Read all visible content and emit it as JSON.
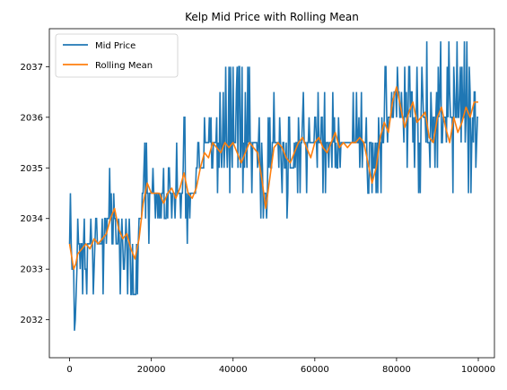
{
  "chart_data": {
    "type": "line",
    "title": "Kelp Mid Price with Rolling Mean",
    "xlabel": "",
    "ylabel": "",
    "xlim": [
      -4950,
      103950
    ],
    "ylim": [
      2031.25,
      2037.75
    ],
    "x_ticks": [
      0,
      20000,
      40000,
      60000,
      80000,
      100000
    ],
    "y_ticks": [
      2032,
      2033,
      2034,
      2035,
      2036,
      2037
    ],
    "legend_position": "top-left",
    "grid": false,
    "colors": {
      "mid": "#1f77b4",
      "mean": "#ff7f0e"
    },
    "series": [
      {
        "name": "Mid Price",
        "color": "#1f77b4",
        "anchors": [
          [
            0,
            2033.5
          ],
          [
            1000,
            2033
          ],
          [
            1500,
            2032
          ],
          [
            2000,
            2033.5
          ],
          [
            4000,
            2033.2
          ],
          [
            6000,
            2033.5
          ],
          [
            8000,
            2033.6
          ],
          [
            10000,
            2034.2
          ],
          [
            12000,
            2033.5
          ],
          [
            14000,
            2033.8
          ],
          [
            16000,
            2033.2
          ],
          [
            18000,
            2034.5
          ],
          [
            20000,
            2034.5
          ],
          [
            22000,
            2034.4
          ],
          [
            24000,
            2034.7
          ],
          [
            26000,
            2034.4
          ],
          [
            28000,
            2034.8
          ],
          [
            30000,
            2034.5
          ],
          [
            32000,
            2035
          ],
          [
            34000,
            2035.5
          ],
          [
            36000,
            2035.3
          ],
          [
            38000,
            2035.5
          ],
          [
            40000,
            2035.5
          ],
          [
            42000,
            2035
          ],
          [
            44000,
            2035.5
          ],
          [
            46000,
            2035.5
          ],
          [
            48000,
            2034.5
          ],
          [
            50000,
            2035.5
          ],
          [
            52000,
            2035.5
          ],
          [
            54000,
            2035
          ],
          [
            56000,
            2035.5
          ],
          [
            58000,
            2035.5
          ],
          [
            60000,
            2035.5
          ],
          [
            62000,
            2035.5
          ],
          [
            64000,
            2035.5
          ],
          [
            66000,
            2035.5
          ],
          [
            68000,
            2035.5
          ],
          [
            70000,
            2035.5
          ],
          [
            72000,
            2035.5
          ],
          [
            74000,
            2034.8
          ],
          [
            76000,
            2035.7
          ],
          [
            78000,
            2036
          ],
          [
            80000,
            2036.4
          ],
          [
            82000,
            2036
          ],
          [
            84000,
            2036
          ],
          [
            86000,
            2036
          ],
          [
            88000,
            2035.5
          ],
          [
            90000,
            2036
          ],
          [
            92000,
            2035.8
          ],
          [
            94000,
            2036
          ],
          [
            96000,
            2036
          ],
          [
            98000,
            2036
          ],
          [
            100000,
            2036.2
          ]
        ]
      },
      {
        "name": "Rolling Mean",
        "color": "#ff7f0e",
        "points": [
          [
            0,
            2033.5
          ],
          [
            600,
            2033.2
          ],
          [
            1000,
            2033
          ],
          [
            1500,
            2033.1
          ],
          [
            2000,
            2033.3
          ],
          [
            3000,
            2033.4
          ],
          [
            4000,
            2033.5
          ],
          [
            5000,
            2033.4
          ],
          [
            6000,
            2033.6
          ],
          [
            7000,
            2033.5
          ],
          [
            8000,
            2033.6
          ],
          [
            9000,
            2033.7
          ],
          [
            10000,
            2034
          ],
          [
            11000,
            2034.2
          ],
          [
            12000,
            2033.8
          ],
          [
            13000,
            2033.6
          ],
          [
            14000,
            2033.7
          ],
          [
            15000,
            2033.4
          ],
          [
            16000,
            2033.2
          ],
          [
            17000,
            2033.6
          ],
          [
            18000,
            2034.3
          ],
          [
            19000,
            2034.7
          ],
          [
            20000,
            2034.5
          ],
          [
            21000,
            2034.5
          ],
          [
            22000,
            2034.5
          ],
          [
            23000,
            2034.3
          ],
          [
            24000,
            2034.5
          ],
          [
            25000,
            2034.6
          ],
          [
            26000,
            2034.4
          ],
          [
            27000,
            2034.6
          ],
          [
            28000,
            2034.9
          ],
          [
            29000,
            2034.5
          ],
          [
            30000,
            2034.4
          ],
          [
            31000,
            2034.6
          ],
          [
            32000,
            2035
          ],
          [
            33000,
            2035.3
          ],
          [
            34000,
            2035.2
          ],
          [
            35000,
            2035.5
          ],
          [
            36000,
            2035.4
          ],
          [
            37000,
            2035.3
          ],
          [
            38000,
            2035.5
          ],
          [
            39000,
            2035.4
          ],
          [
            40000,
            2035.5
          ],
          [
            41000,
            2035.3
          ],
          [
            42000,
            2035.1
          ],
          [
            43000,
            2035.3
          ],
          [
            44000,
            2035.5
          ],
          [
            45000,
            2035.4
          ],
          [
            46000,
            2035.3
          ],
          [
            47000,
            2034.8
          ],
          [
            48000,
            2034.2
          ],
          [
            49000,
            2034.8
          ],
          [
            50000,
            2035.4
          ],
          [
            51000,
            2035.5
          ],
          [
            52000,
            2035.4
          ],
          [
            53000,
            2035.2
          ],
          [
            54000,
            2035.1
          ],
          [
            55000,
            2035.3
          ],
          [
            56000,
            2035.5
          ],
          [
            57000,
            2035.6
          ],
          [
            58000,
            2035.4
          ],
          [
            59000,
            2035.2
          ],
          [
            60000,
            2035.5
          ],
          [
            61000,
            2035.6
          ],
          [
            62000,
            2035.4
          ],
          [
            63000,
            2035.3
          ],
          [
            64000,
            2035.5
          ],
          [
            65000,
            2035.7
          ],
          [
            66000,
            2035.4
          ],
          [
            67000,
            2035.5
          ],
          [
            68000,
            2035.4
          ],
          [
            69000,
            2035.5
          ],
          [
            70000,
            2035.5
          ],
          [
            71000,
            2035.6
          ],
          [
            72000,
            2035.5
          ],
          [
            73000,
            2035.1
          ],
          [
            74000,
            2034.7
          ],
          [
            75000,
            2035
          ],
          [
            76000,
            2035.6
          ],
          [
            77000,
            2035.9
          ],
          [
            78000,
            2035.7
          ],
          [
            79000,
            2036.3
          ],
          [
            80000,
            2036.6
          ],
          [
            81000,
            2036.2
          ],
          [
            82000,
            2035.8
          ],
          [
            83000,
            2036.1
          ],
          [
            84000,
            2036.3
          ],
          [
            85000,
            2035.9
          ],
          [
            86000,
            2036
          ],
          [
            87000,
            2036.1
          ],
          [
            88000,
            2035.6
          ],
          [
            89000,
            2035.5
          ],
          [
            90000,
            2036
          ],
          [
            91000,
            2036.2
          ],
          [
            92000,
            2035.8
          ],
          [
            93000,
            2035.5
          ],
          [
            94000,
            2036
          ],
          [
            95000,
            2035.7
          ],
          [
            96000,
            2035.9
          ],
          [
            97000,
            2036.2
          ],
          [
            98000,
            2036
          ],
          [
            99000,
            2036.3
          ],
          [
            100000,
            2036.3
          ]
        ]
      }
    ]
  }
}
